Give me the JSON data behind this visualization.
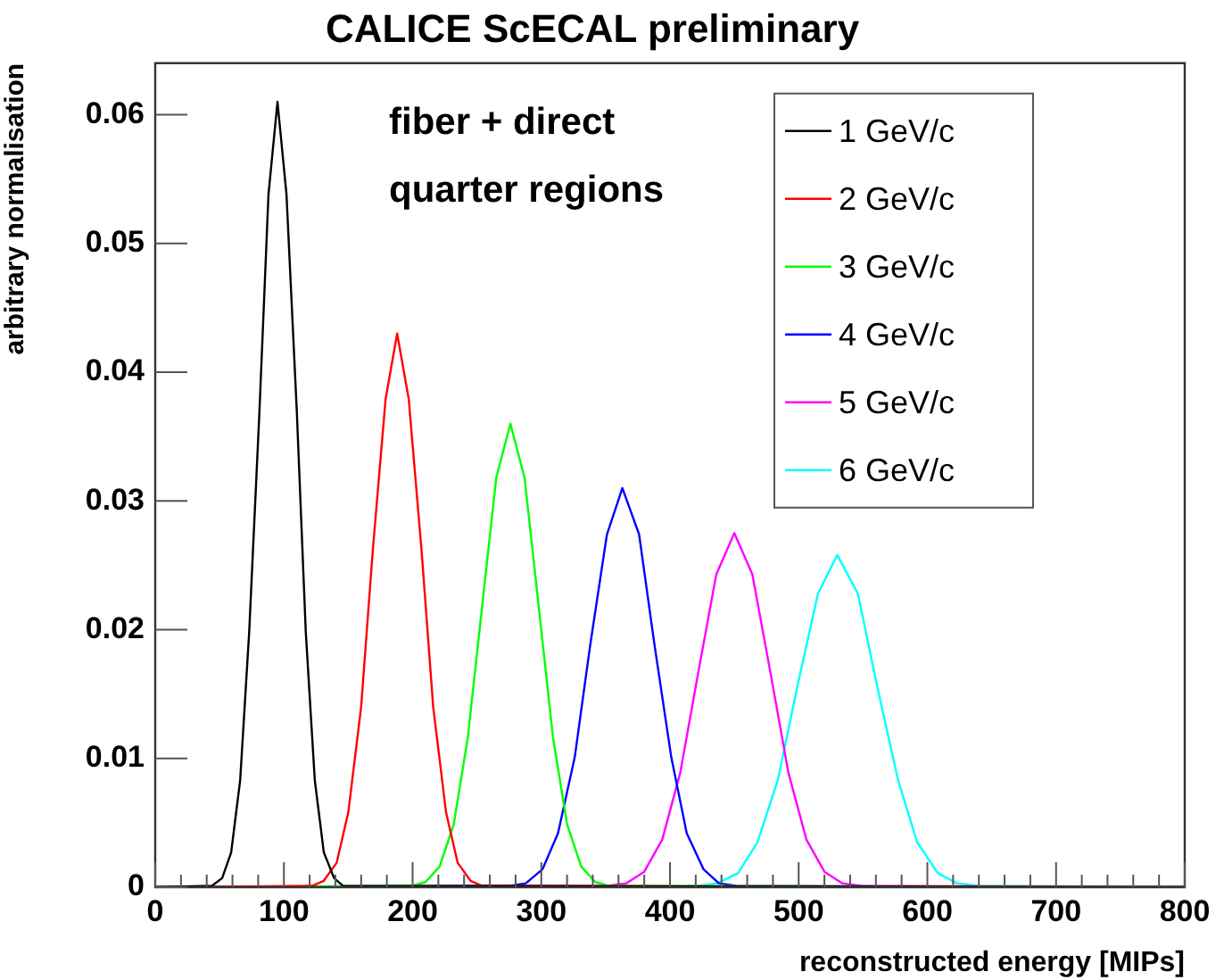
{
  "chart_data": {
    "type": "line",
    "title": "CALICE ScECAL preliminary",
    "xlabel": "reconstructed energy [MIPs]",
    "ylabel": "arbitrary normalisation",
    "annotations": [
      "fiber + direct",
      "quarter regions"
    ],
    "xlim": [
      0,
      800
    ],
    "xticks": [
      0,
      100,
      200,
      300,
      400,
      500,
      600,
      700,
      800
    ],
    "ylim": [
      0,
      0.064
    ],
    "yticks": [
      0,
      0.01,
      0.02,
      0.03,
      0.04,
      0.05,
      0.06
    ],
    "grid": false,
    "legend": "top right",
    "marker": "none",
    "line_style": "solid",
    "series": [
      {
        "name": "1 GeV/c",
        "color": "#000000",
        "x": [
          0,
          44,
          52,
          59,
          66,
          73,
          81,
          88,
          95,
          102,
          110,
          117,
          124,
          131,
          139,
          146,
          800
        ],
        "values": [
          0,
          0.0001,
          0.0007,
          0.0027,
          0.0083,
          0.0198,
          0.037,
          0.0538,
          0.061,
          0.0538,
          0.037,
          0.0198,
          0.0083,
          0.0027,
          0.0007,
          0.0001,
          0
        ]
      },
      {
        "name": "2 GeV/c",
        "color": "#ff0000",
        "x": [
          0,
          122,
          131,
          141,
          150,
          160,
          169,
          179,
          188,
          197,
          207,
          216,
          226,
          235,
          245,
          254,
          800
        ],
        "values": [
          0,
          0.0001,
          0.0005,
          0.0019,
          0.0058,
          0.014,
          0.0261,
          0.0379,
          0.043,
          0.0379,
          0.0261,
          0.014,
          0.0058,
          0.0019,
          0.0005,
          0.0001,
          0
        ]
      },
      {
        "name": "3 GeV/c",
        "color": "#00ff00",
        "x": [
          0,
          199,
          210,
          221,
          232,
          243,
          254,
          265,
          276,
          287,
          298,
          309,
          320,
          331,
          342,
          353,
          800
        ],
        "values": [
          0,
          0.0001,
          0.0004,
          0.0016,
          0.0049,
          0.0117,
          0.0218,
          0.0318,
          0.036,
          0.0318,
          0.0218,
          0.0117,
          0.0049,
          0.0016,
          0.0004,
          0.0001,
          0
        ]
      },
      {
        "name": "4 GeV/c",
        "color": "#0000ff",
        "x": [
          0,
          276,
          288,
          301,
          313,
          326,
          338,
          351,
          363,
          376,
          388,
          401,
          413,
          426,
          438,
          451,
          800
        ],
        "values": [
          0,
          0.0001,
          0.0003,
          0.0014,
          0.0042,
          0.0101,
          0.0188,
          0.0274,
          0.031,
          0.0274,
          0.0188,
          0.0101,
          0.0042,
          0.0014,
          0.0003,
          0.0001,
          0
        ]
      },
      {
        "name": "5 GeV/c",
        "color": "#ff00ff",
        "x": [
          0,
          352,
          366,
          380,
          394,
          408,
          422,
          436,
          450,
          464,
          478,
          492,
          506,
          520,
          534,
          548,
          800
        ],
        "values": [
          0,
          0.0001,
          0.0003,
          0.0012,
          0.0037,
          0.0089,
          0.0167,
          0.0243,
          0.0275,
          0.0243,
          0.0167,
          0.0089,
          0.0037,
          0.0012,
          0.0003,
          0.0001,
          0
        ]
      },
      {
        "name": "6 GeV/c",
        "color": "#00ffff",
        "x": [
          0,
          422,
          437,
          453,
          468,
          484,
          499,
          515,
          530,
          546,
          561,
          577,
          592,
          608,
          623,
          639,
          800
        ],
        "values": [
          0,
          0.0001,
          0.0003,
          0.0011,
          0.0035,
          0.0084,
          0.0156,
          0.0228,
          0.0258,
          0.0228,
          0.0156,
          0.0084,
          0.0035,
          0.0011,
          0.0003,
          0.0001,
          0
        ]
      }
    ]
  }
}
